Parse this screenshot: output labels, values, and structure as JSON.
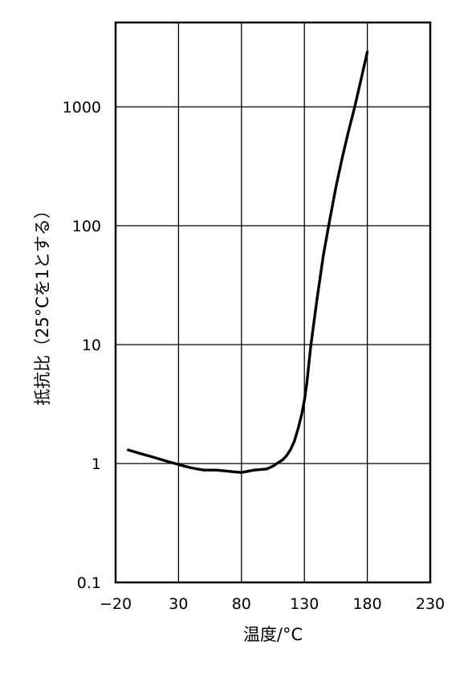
{
  "chart_data": {
    "type": "line",
    "xlabel": "温度/°C",
    "ylabel": "抵抗比（25°Cを1とする）",
    "x_scale": "linear",
    "y_scale": "log",
    "xlim": [
      -20,
      230
    ],
    "ylim": [
      0.1,
      5000
    ],
    "x_ticks": [
      -20,
      30,
      80,
      130,
      180,
      230
    ],
    "x_tick_labels": [
      "−20",
      "30",
      "80",
      "130",
      "180",
      "230"
    ],
    "y_ticks": [
      0.1,
      1,
      10,
      100,
      1000
    ],
    "y_tick_labels": [
      "0.1",
      "1",
      "10",
      "100",
      "1000"
    ],
    "grid": true,
    "legend": "none",
    "series": [
      {
        "color": "#000000",
        "x": [
          -10,
          0,
          10,
          20,
          30,
          40,
          50,
          60,
          70,
          80,
          90,
          100,
          105,
          110,
          113,
          116,
          119,
          122,
          125,
          128,
          130,
          132,
          135,
          140,
          145,
          150,
          155,
          160,
          165,
          170,
          175,
          180
        ],
        "y": [
          1.3,
          1.21,
          1.13,
          1.05,
          0.98,
          0.92,
          0.88,
          0.88,
          0.86,
          0.84,
          0.88,
          0.9,
          0.95,
          1.03,
          1.08,
          1.17,
          1.31,
          1.54,
          1.96,
          2.63,
          3.4,
          4.8,
          9.6,
          24,
          56,
          110,
          210,
          370,
          620,
          1000,
          1700,
          2900
        ]
      }
    ]
  }
}
